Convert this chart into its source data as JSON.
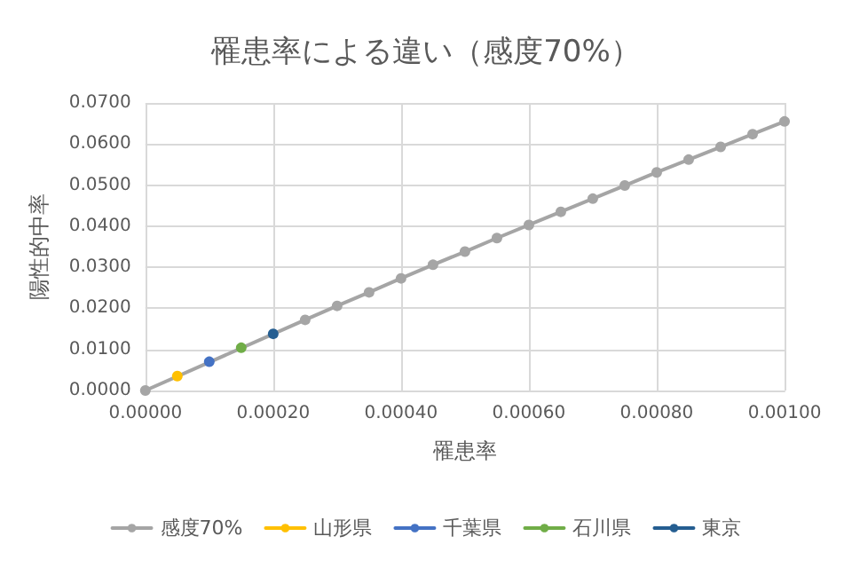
{
  "chart_data": {
    "type": "line",
    "title": "罹患率による違い（感度70%）",
    "xlabel": "罹患率",
    "ylabel": "陽性的中率",
    "series": [
      {
        "name": "感度70%",
        "color": "#a5a5a5",
        "x": [
          0,
          5e-05,
          0.0001,
          0.00015,
          0.0002,
          0.00025,
          0.0003,
          0.00035,
          0.0004,
          0.00045,
          0.0005,
          0.00055,
          0.0006,
          0.00065,
          0.0007,
          0.00075,
          0.0008,
          0.00085,
          0.0009,
          0.00095,
          0.001
        ],
        "values": [
          0,
          null,
          null,
          null,
          null,
          0.0172,
          0.0206,
          0.0239,
          0.0273,
          0.0306,
          0.0338,
          0.0371,
          0.0403,
          0.0435,
          0.0467,
          0.0499,
          0.0531,
          0.0562,
          0.0593,
          0.0624,
          0.0655
        ]
      },
      {
        "name": "山形県",
        "color": "#ffc000",
        "x": [
          5e-05
        ],
        "values": [
          0.0035
        ]
      },
      {
        "name": "千葉県",
        "color": "#4472c4",
        "x": [
          0.0001
        ],
        "values": [
          0.007
        ]
      },
      {
        "name": "石川県",
        "color": "#70ad47",
        "x": [
          0.00015
        ],
        "values": [
          0.0104
        ]
      },
      {
        "name": "東京",
        "color": "#255e91",
        "x": [
          0.0002
        ],
        "values": [
          0.0138
        ]
      }
    ],
    "xlim": [
      0,
      0.001
    ],
    "xticks": [
      {
        "value": 0,
        "label": "0.00000"
      },
      {
        "value": 0.0002,
        "label": "0.00020"
      },
      {
        "value": 0.0004,
        "label": "0.00040"
      },
      {
        "value": 0.0006,
        "label": "0.00060"
      },
      {
        "value": 0.0008,
        "label": "0.00080"
      },
      {
        "value": 0.001,
        "label": "0.00100"
      }
    ],
    "ylim": [
      0,
      0.07
    ],
    "yticks": [
      {
        "value": 0,
        "label": "0.0000"
      },
      {
        "value": 0.01,
        "label": "0.0100"
      },
      {
        "value": 0.02,
        "label": "0.0200"
      },
      {
        "value": 0.03,
        "label": "0.0300"
      },
      {
        "value": 0.04,
        "label": "0.0400"
      },
      {
        "value": 0.05,
        "label": "0.0500"
      },
      {
        "value": 0.06,
        "label": "0.0600"
      },
      {
        "value": 0.07,
        "label": "0.0700"
      }
    ],
    "grid": true,
    "legend": "bottom",
    "marker": "circle",
    "line_style": "solid"
  }
}
